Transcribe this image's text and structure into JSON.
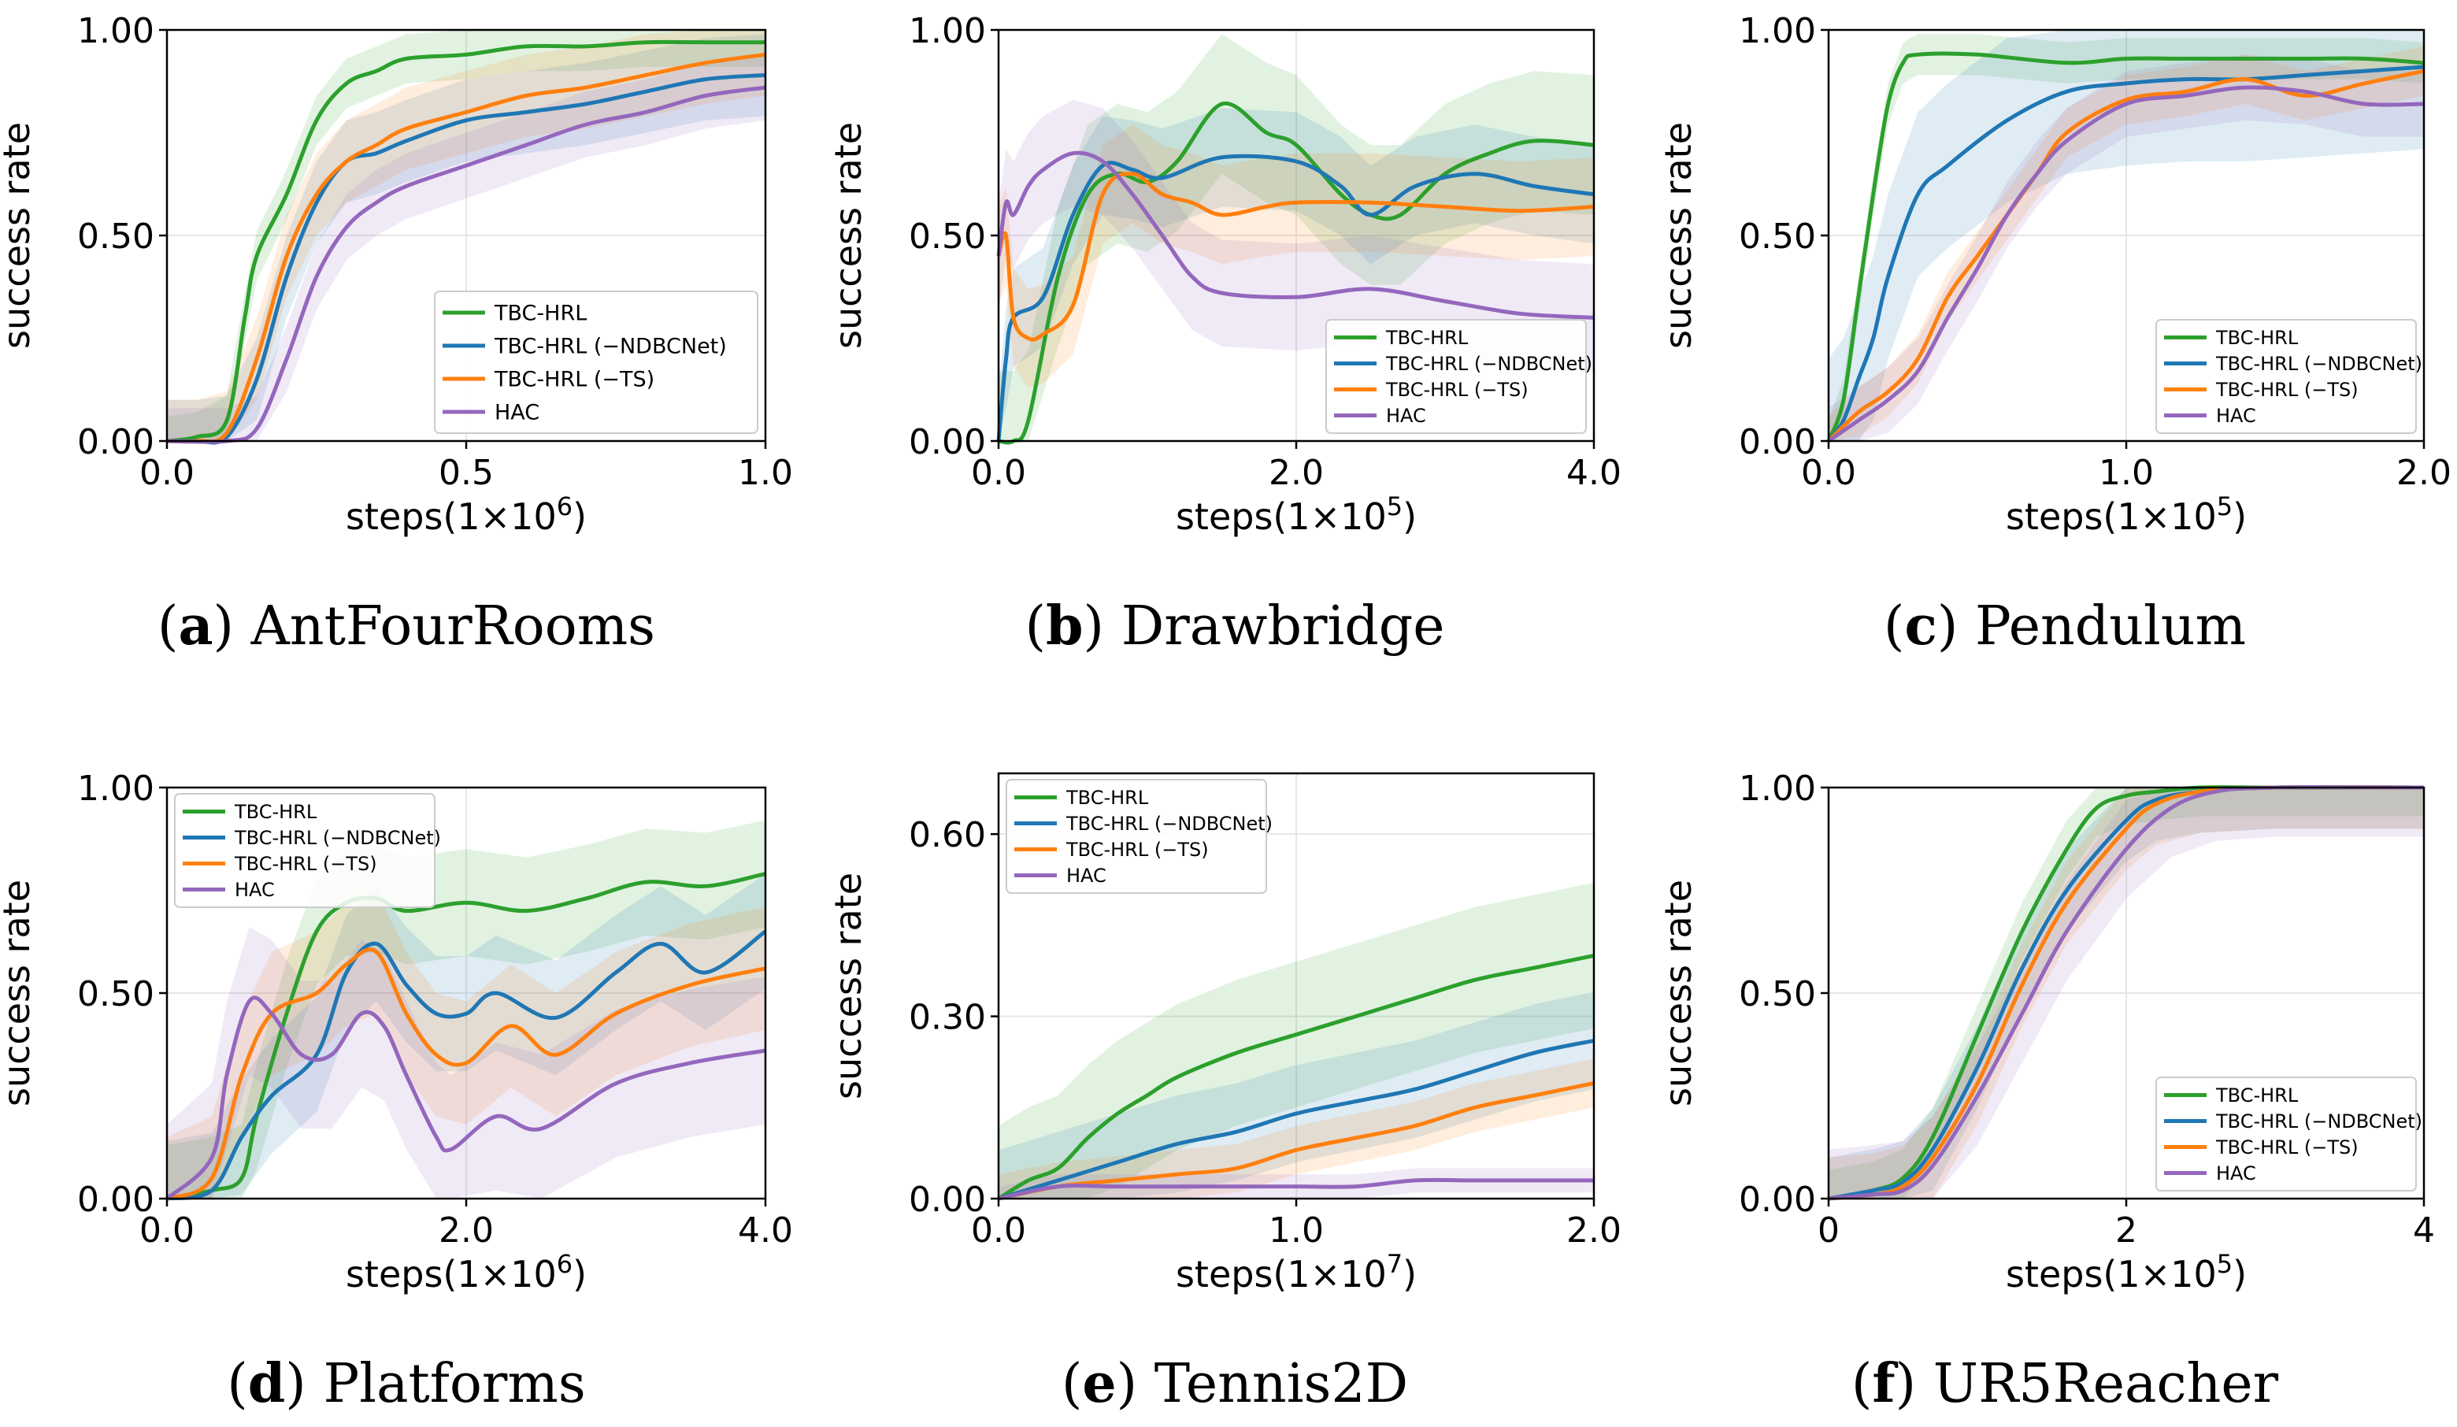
{
  "colors": {
    "tbc": "#2ca02c",
    "ndbc": "#1f77b4",
    "ts": "#ff7f0e",
    "hac": "#9467bd"
  },
  "chart_data": [
    {
      "type": "line",
      "caption_letter": "a",
      "caption_name": "AntFourRooms",
      "xlabel_prefix": "steps(1×10",
      "xlabel_exp": "6",
      "xlabel_suffix": ")",
      "ylabel": "success rate",
      "xlim": [
        0,
        1.0
      ],
      "ylim": [
        0,
        1.0
      ],
      "xticks": [
        0,
        0.5,
        1.0
      ],
      "xtick_labels": [
        "0.0",
        "0.5",
        "1.0"
      ],
      "yticks": [
        0,
        0.5,
        1.0
      ],
      "ytick_labels": [
        "0.00",
        "0.50",
        "1.00"
      ],
      "legend_position": "bottom-right",
      "series": [
        {
          "name": "TBC-HRL",
          "color_key": "tbc",
          "band": 0.06,
          "x": [
            0,
            0.05,
            0.1,
            0.13,
            0.15,
            0.2,
            0.25,
            0.3,
            0.35,
            0.4,
            0.5,
            0.6,
            0.7,
            0.8,
            0.9,
            1.0
          ],
          "y": [
            0,
            0.01,
            0.05,
            0.3,
            0.45,
            0.6,
            0.78,
            0.87,
            0.9,
            0.93,
            0.94,
            0.96,
            0.96,
            0.97,
            0.97,
            0.97
          ]
        },
        {
          "name": "TBC-HRL (−NDBCNet)",
          "color_key": "ndbc",
          "band": 0.1,
          "x": [
            0,
            0.05,
            0.1,
            0.15,
            0.2,
            0.25,
            0.3,
            0.35,
            0.4,
            0.5,
            0.6,
            0.7,
            0.8,
            0.9,
            1.0
          ],
          "y": [
            0,
            0,
            0.01,
            0.15,
            0.4,
            0.58,
            0.68,
            0.7,
            0.73,
            0.78,
            0.8,
            0.82,
            0.85,
            0.88,
            0.89
          ]
        },
        {
          "name": "TBC-HRL (−TS)",
          "color_key": "ts",
          "band": 0.1,
          "x": [
            0,
            0.05,
            0.1,
            0.15,
            0.2,
            0.25,
            0.3,
            0.35,
            0.4,
            0.5,
            0.6,
            0.7,
            0.8,
            0.9,
            1.0
          ],
          "y": [
            0,
            0,
            0.02,
            0.2,
            0.45,
            0.6,
            0.68,
            0.72,
            0.76,
            0.8,
            0.84,
            0.86,
            0.89,
            0.92,
            0.94
          ]
        },
        {
          "name": "HAC",
          "color_key": "hac",
          "band": 0.08,
          "x": [
            0,
            0.1,
            0.15,
            0.2,
            0.25,
            0.3,
            0.35,
            0.4,
            0.5,
            0.6,
            0.7,
            0.8,
            0.9,
            1.0
          ],
          "y": [
            0,
            0,
            0.03,
            0.2,
            0.4,
            0.52,
            0.58,
            0.62,
            0.67,
            0.72,
            0.77,
            0.8,
            0.84,
            0.86
          ]
        }
      ]
    },
    {
      "type": "line",
      "caption_letter": "b",
      "caption_name": "Drawbridge",
      "xlabel_prefix": "steps(1×10",
      "xlabel_exp": "5",
      "xlabel_suffix": ")",
      "ylabel": "success rate",
      "xlim": [
        0,
        4.0
      ],
      "ylim": [
        0,
        1.0
      ],
      "xticks": [
        0,
        2.0,
        4.0
      ],
      "xtick_labels": [
        "0.0",
        "2.0",
        "4.0"
      ],
      "yticks": [
        0,
        0.5,
        1.0
      ],
      "ytick_labels": [
        "0.00",
        "0.50",
        "1.00"
      ],
      "legend_position": "bottom-right",
      "series": [
        {
          "name": "TBC-HRL",
          "color_key": "tbc",
          "band": 0.17,
          "x": [
            0,
            0.1,
            0.2,
            0.4,
            0.6,
            0.8,
            1.0,
            1.2,
            1.5,
            1.8,
            2.0,
            2.3,
            2.5,
            2.7,
            3.0,
            3.3,
            3.6,
            4.0
          ],
          "y": [
            0,
            0,
            0.05,
            0.4,
            0.6,
            0.65,
            0.63,
            0.68,
            0.82,
            0.75,
            0.72,
            0.6,
            0.55,
            0.55,
            0.65,
            0.7,
            0.73,
            0.72
          ]
        },
        {
          "name": "TBC-HRL (−NDBCNet)",
          "color_key": "ndbc",
          "band": 0.12,
          "x": [
            0,
            0.05,
            0.1,
            0.3,
            0.5,
            0.7,
            0.9,
            1.1,
            1.5,
            2.0,
            2.3,
            2.5,
            2.8,
            3.2,
            3.6,
            4.0
          ],
          "y": [
            0,
            0.2,
            0.3,
            0.35,
            0.55,
            0.67,
            0.66,
            0.64,
            0.69,
            0.68,
            0.62,
            0.55,
            0.62,
            0.65,
            0.62,
            0.6
          ]
        },
        {
          "name": "TBC-HRL (−TS)",
          "color_key": "ts",
          "band": 0.12,
          "x": [
            0,
            0.05,
            0.1,
            0.2,
            0.3,
            0.5,
            0.7,
            0.9,
            1.1,
            1.3,
            1.5,
            1.8,
            2.0,
            2.5,
            3.0,
            3.5,
            4.0
          ],
          "y": [
            0.45,
            0.5,
            0.3,
            0.25,
            0.26,
            0.33,
            0.6,
            0.65,
            0.6,
            0.58,
            0.55,
            0.57,
            0.58,
            0.58,
            0.57,
            0.56,
            0.57
          ]
        },
        {
          "name": "HAC",
          "color_key": "hac",
          "band": 0.13,
          "x": [
            0,
            0.05,
            0.1,
            0.2,
            0.3,
            0.5,
            0.7,
            0.9,
            1.1,
            1.3,
            1.5,
            2.0,
            2.5,
            3.0,
            3.5,
            4.0
          ],
          "y": [
            0.45,
            0.58,
            0.55,
            0.62,
            0.66,
            0.7,
            0.68,
            0.6,
            0.5,
            0.4,
            0.36,
            0.35,
            0.37,
            0.34,
            0.31,
            0.3
          ]
        }
      ]
    },
    {
      "type": "line",
      "caption_letter": "c",
      "caption_name": "Pendulum",
      "xlabel_prefix": "steps(1×10",
      "xlabel_exp": "5",
      "xlabel_suffix": ")",
      "ylabel": "success rate",
      "xlim": [
        0,
        2.0
      ],
      "ylim": [
        0,
        1.0
      ],
      "xticks": [
        0,
        1.0,
        2.0
      ],
      "xtick_labels": [
        "0.0",
        "1.0",
        "2.0"
      ],
      "yticks": [
        0,
        0.5,
        1.0
      ],
      "ytick_labels": [
        "0.00",
        "0.50",
        "1.00"
      ],
      "legend_position": "bottom-right",
      "series": [
        {
          "name": "TBC-HRL",
          "color_key": "tbc",
          "band": 0.05,
          "x": [
            0,
            0.05,
            0.1,
            0.15,
            0.2,
            0.25,
            0.3,
            0.5,
            0.8,
            1.0,
            1.2,
            1.4,
            1.6,
            1.8,
            2.0
          ],
          "y": [
            0,
            0.1,
            0.35,
            0.6,
            0.82,
            0.92,
            0.94,
            0.94,
            0.92,
            0.93,
            0.93,
            0.93,
            0.93,
            0.93,
            0.92
          ]
        },
        {
          "name": "TBC-HRL (−NDBCNet)",
          "color_key": "ndbc",
          "band": 0.2,
          "x": [
            0,
            0.05,
            0.1,
            0.15,
            0.2,
            0.3,
            0.4,
            0.6,
            0.8,
            1.0,
            1.2,
            1.4,
            1.6,
            1.8,
            2.0
          ],
          "y": [
            0,
            0.05,
            0.15,
            0.25,
            0.4,
            0.6,
            0.67,
            0.78,
            0.85,
            0.87,
            0.88,
            0.88,
            0.89,
            0.9,
            0.91
          ]
        },
        {
          "name": "TBC-HRL (−TS)",
          "color_key": "ts",
          "band": 0.06,
          "x": [
            0,
            0.1,
            0.2,
            0.3,
            0.4,
            0.5,
            0.6,
            0.7,
            0.8,
            1.0,
            1.2,
            1.4,
            1.6,
            1.8,
            2.0
          ],
          "y": [
            0,
            0.07,
            0.12,
            0.2,
            0.35,
            0.45,
            0.55,
            0.65,
            0.75,
            0.83,
            0.85,
            0.88,
            0.84,
            0.87,
            0.9
          ]
        },
        {
          "name": "HAC",
          "color_key": "hac",
          "band": 0.08,
          "x": [
            0,
            0.1,
            0.2,
            0.3,
            0.4,
            0.5,
            0.6,
            0.7,
            0.8,
            1.0,
            1.2,
            1.4,
            1.6,
            1.8,
            2.0
          ],
          "y": [
            0,
            0.05,
            0.1,
            0.17,
            0.3,
            0.42,
            0.55,
            0.65,
            0.73,
            0.82,
            0.84,
            0.86,
            0.85,
            0.82,
            0.82
          ]
        }
      ]
    },
    {
      "type": "line",
      "caption_letter": "d",
      "caption_name": "Platforms",
      "xlabel_prefix": "steps(1×10",
      "xlabel_exp": "6",
      "xlabel_suffix": ")",
      "ylabel": "success rate",
      "xlim": [
        0,
        4.0
      ],
      "ylim": [
        0,
        1.0
      ],
      "xticks": [
        0,
        2.0,
        4.0
      ],
      "xtick_labels": [
        "0.0",
        "2.0",
        "4.0"
      ],
      "yticks": [
        0,
        0.5,
        1.0
      ],
      "ytick_labels": [
        "0.00",
        "0.50",
        "1.00"
      ],
      "legend_position": "top-left",
      "series": [
        {
          "name": "TBC-HRL",
          "color_key": "tbc",
          "band": 0.13,
          "x": [
            0,
            0.3,
            0.5,
            0.6,
            0.8,
            1.0,
            1.2,
            1.4,
            1.6,
            2.0,
            2.4,
            2.8,
            3.2,
            3.6,
            4.0
          ],
          "y": [
            0,
            0.02,
            0.05,
            0.2,
            0.45,
            0.65,
            0.72,
            0.73,
            0.7,
            0.72,
            0.7,
            0.73,
            0.77,
            0.76,
            0.79
          ]
        },
        {
          "name": "TBC-HRL (−NDBCNet)",
          "color_key": "ndbc",
          "band": 0.14,
          "x": [
            0,
            0.3,
            0.5,
            0.7,
            1.0,
            1.2,
            1.4,
            1.6,
            1.8,
            2.0,
            2.2,
            2.6,
            3.0,
            3.3,
            3.6,
            4.0
          ],
          "y": [
            0,
            0.02,
            0.15,
            0.25,
            0.35,
            0.55,
            0.62,
            0.52,
            0.45,
            0.45,
            0.5,
            0.44,
            0.55,
            0.62,
            0.55,
            0.65
          ]
        },
        {
          "name": "TBC-HRL (−TS)",
          "color_key": "ts",
          "band": 0.15,
          "x": [
            0,
            0.3,
            0.5,
            0.7,
            1.0,
            1.2,
            1.4,
            1.6,
            1.8,
            2.0,
            2.3,
            2.6,
            3.0,
            3.5,
            4.0
          ],
          "y": [
            0,
            0.05,
            0.3,
            0.45,
            0.5,
            0.57,
            0.6,
            0.45,
            0.35,
            0.33,
            0.42,
            0.35,
            0.45,
            0.52,
            0.56
          ]
        },
        {
          "name": "HAC",
          "color_key": "hac",
          "band": 0.18,
          "x": [
            0,
            0.3,
            0.4,
            0.55,
            0.7,
            0.9,
            1.1,
            1.3,
            1.45,
            1.6,
            1.8,
            1.9,
            2.2,
            2.5,
            3.0,
            3.5,
            4.0
          ],
          "y": [
            0,
            0.1,
            0.3,
            0.48,
            0.45,
            0.35,
            0.35,
            0.45,
            0.42,
            0.3,
            0.15,
            0.12,
            0.2,
            0.17,
            0.28,
            0.33,
            0.36
          ]
        }
      ]
    },
    {
      "type": "line",
      "caption_letter": "e",
      "caption_name": "Tennis2D",
      "xlabel_prefix": "steps(1×10",
      "xlabel_exp": "7",
      "xlabel_suffix": ")",
      "ylabel": "success rate",
      "xlim": [
        0,
        2.0
      ],
      "ylim": [
        0,
        0.7
      ],
      "xticks": [
        0,
        1.0,
        2.0
      ],
      "xtick_labels": [
        "0.0",
        "1.0",
        "2.0"
      ],
      "yticks": [
        0,
        0.3,
        0.6
      ],
      "ytick_labels": [
        "0.00",
        "0.30",
        "0.60"
      ],
      "legend_position": "top-left",
      "series": [
        {
          "name": "TBC-HRL",
          "color_key": "tbc",
          "band": 0.12,
          "x": [
            0,
            0.1,
            0.2,
            0.3,
            0.4,
            0.5,
            0.6,
            0.8,
            1.0,
            1.2,
            1.4,
            1.6,
            1.8,
            2.0
          ],
          "y": [
            0,
            0.03,
            0.05,
            0.1,
            0.14,
            0.17,
            0.2,
            0.24,
            0.27,
            0.3,
            0.33,
            0.36,
            0.38,
            0.4
          ]
        },
        {
          "name": "TBC-HRL (−NDBCNet)",
          "color_key": "ndbc",
          "band": 0.08,
          "x": [
            0,
            0.2,
            0.4,
            0.6,
            0.8,
            1.0,
            1.2,
            1.4,
            1.6,
            1.8,
            2.0
          ],
          "y": [
            0,
            0.03,
            0.06,
            0.09,
            0.11,
            0.14,
            0.16,
            0.18,
            0.21,
            0.24,
            0.26
          ]
        },
        {
          "name": "TBC-HRL (−TS)",
          "color_key": "ts",
          "band": 0.04,
          "x": [
            0,
            0.2,
            0.4,
            0.6,
            0.8,
            1.0,
            1.2,
            1.4,
            1.6,
            1.8,
            2.0
          ],
          "y": [
            0,
            0.02,
            0.03,
            0.04,
            0.05,
            0.08,
            0.1,
            0.12,
            0.15,
            0.17,
            0.19
          ]
        },
        {
          "name": "HAC",
          "color_key": "hac",
          "band": 0.02,
          "x": [
            0,
            0.2,
            0.4,
            0.6,
            0.8,
            1.0,
            1.2,
            1.4,
            1.6,
            1.8,
            2.0
          ],
          "y": [
            0,
            0.02,
            0.02,
            0.02,
            0.02,
            0.02,
            0.02,
            0.03,
            0.03,
            0.03,
            0.03
          ]
        }
      ]
    },
    {
      "type": "line",
      "caption_letter": "f",
      "caption_name": "UR5Reacher",
      "xlabel_prefix": "steps(1×10",
      "xlabel_exp": "5",
      "xlabel_suffix": ")",
      "ylabel": "success rate",
      "xlim": [
        0,
        4
      ],
      "ylim": [
        0,
        1.0
      ],
      "xticks": [
        0,
        2,
        4
      ],
      "xtick_labels": [
        "0",
        "2",
        "4"
      ],
      "yticks": [
        0,
        0.5,
        1.0
      ],
      "ytick_labels": [
        "0.00",
        "0.50",
        "1.00"
      ],
      "legend_position": "bottom-right",
      "series": [
        {
          "name": "TBC-HRL",
          "color_key": "tbc",
          "band": 0.07,
          "x": [
            0,
            0.3,
            0.5,
            0.7,
            1.0,
            1.3,
            1.6,
            1.8,
            2.0,
            2.2,
            2.5,
            3.0,
            4.0
          ],
          "y": [
            0,
            0.02,
            0.05,
            0.15,
            0.4,
            0.65,
            0.85,
            0.95,
            0.98,
            0.99,
            1.0,
            1.0,
            1.0
          ]
        },
        {
          "name": "TBC-HRL (−NDBCNet)",
          "color_key": "ndbc",
          "band": 0.1,
          "x": [
            0,
            0.3,
            0.5,
            0.7,
            1.0,
            1.3,
            1.6,
            2.0,
            2.2,
            2.5,
            3.0,
            4.0
          ],
          "y": [
            0,
            0.02,
            0.04,
            0.12,
            0.32,
            0.56,
            0.75,
            0.92,
            0.97,
            0.99,
            1.0,
            1.0
          ]
        },
        {
          "name": "TBC-HRL (−TS)",
          "color_key": "ts",
          "band": 0.1,
          "x": [
            0,
            0.3,
            0.5,
            0.7,
            1.0,
            1.3,
            1.6,
            2.0,
            2.2,
            2.5,
            3.0,
            4.0
          ],
          "y": [
            0,
            0.01,
            0.03,
            0.1,
            0.28,
            0.52,
            0.72,
            0.9,
            0.96,
            0.99,
            1.0,
            1.0
          ]
        },
        {
          "name": "HAC",
          "color_key": "hac",
          "band": 0.12,
          "x": [
            0,
            0.3,
            0.5,
            0.7,
            1.0,
            1.3,
            1.6,
            2.0,
            2.3,
            2.6,
            3.0,
            4.0
          ],
          "y": [
            0,
            0.01,
            0.02,
            0.08,
            0.25,
            0.45,
            0.65,
            0.85,
            0.95,
            0.99,
            1.0,
            1.0
          ]
        }
      ]
    }
  ]
}
